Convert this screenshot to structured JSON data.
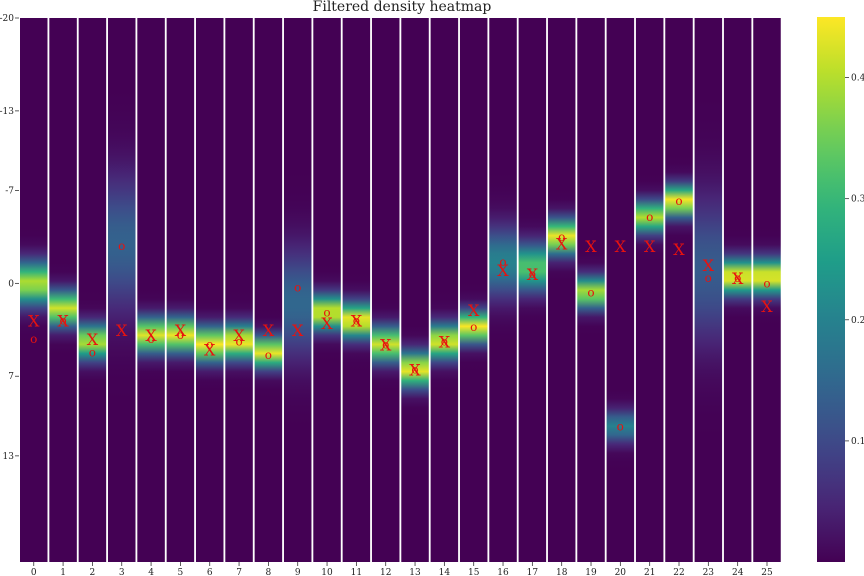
{
  "chart_data": {
    "type": "heatmap",
    "title": "Filtered density heatmap",
    "xlabel": "",
    "ylabel": "",
    "x_ticks": [
      "0",
      "1",
      "2",
      "3",
      "4",
      "5",
      "6",
      "7",
      "8",
      "9",
      "10",
      "11",
      "12",
      "13",
      "14",
      "15",
      "16",
      "17",
      "18",
      "19",
      "20",
      "21",
      "22",
      "23",
      "24",
      "25"
    ],
    "y_ticks": [
      "-20",
      "-13",
      "-7",
      "0",
      "7",
      "13"
    ],
    "ylim": [
      -20,
      21
    ],
    "colormap": "viridis",
    "colorbar": {
      "ticks": [
        "0.1",
        "0.2",
        "0.3",
        "0.4"
      ],
      "range": [
        0,
        0.45
      ]
    },
    "columns": [
      {
        "x": 0,
        "center": 0.0,
        "width": 1.1,
        "peak": 0.4,
        "X": 2.8,
        "o": 4.2
      },
      {
        "x": 1,
        "center": 1.9,
        "width": 0.9,
        "peak": 0.42,
        "X": 2.8,
        "o": 2.8
      },
      {
        "x": 2,
        "center": 4.4,
        "width": 0.9,
        "peak": 0.4,
        "X": 4.2,
        "o": 5.2
      },
      {
        "x": 3,
        "center": -3.0,
        "width": 3.5,
        "peak": 0.14,
        "X": 3.5,
        "o": -2.8
      },
      {
        "x": 4,
        "center": 3.9,
        "width": 0.9,
        "peak": 0.43,
        "X": 3.9,
        "o": 4.2
      },
      {
        "x": 5,
        "center": 3.9,
        "width": 0.9,
        "peak": 0.44,
        "X": 3.5,
        "o": 3.9
      },
      {
        "x": 6,
        "center": 4.6,
        "width": 0.9,
        "peak": 0.45,
        "X": 5.0,
        "o": 4.6
      },
      {
        "x": 7,
        "center": 4.4,
        "width": 0.9,
        "peak": 0.45,
        "X": 3.9,
        "o": 4.4
      },
      {
        "x": 8,
        "center": 5.2,
        "width": 0.8,
        "peak": 0.44,
        "X": 3.5,
        "o": 5.4
      },
      {
        "x": 9,
        "center": 1.5,
        "width": 2.8,
        "peak": 0.15,
        "X": 3.5,
        "o": 0.3
      },
      {
        "x": 10,
        "center": 2.2,
        "width": 0.9,
        "peak": 0.43,
        "X": 3.0,
        "o": 2.2
      },
      {
        "x": 11,
        "center": 2.8,
        "width": 0.9,
        "peak": 0.45,
        "X": 2.8,
        "o": 2.8
      },
      {
        "x": 12,
        "center": 4.6,
        "width": 0.9,
        "peak": 0.42,
        "X": 4.6,
        "o": 4.6
      },
      {
        "x": 13,
        "center": 6.5,
        "width": 0.9,
        "peak": 0.44,
        "X": 6.5,
        "o": 6.5
      },
      {
        "x": 14,
        "center": 4.4,
        "width": 0.9,
        "peak": 0.43,
        "X": 4.4,
        "o": 4.4
      },
      {
        "x": 15,
        "center": 3.3,
        "width": 0.8,
        "peak": 0.45,
        "X": 2.0,
        "o": 3.3
      },
      {
        "x": 16,
        "center": -1.6,
        "width": 1.8,
        "peak": 0.2,
        "X": -1.0,
        "o": -1.6
      },
      {
        "x": 17,
        "center": -1.2,
        "width": 1.2,
        "peak": 0.33,
        "X": -0.7,
        "o": -0.7
      },
      {
        "x": 18,
        "center": -3.5,
        "width": 0.9,
        "peak": 0.44,
        "X": -3.0,
        "o": -3.5
      },
      {
        "x": 19,
        "center": 0.7,
        "width": 0.8,
        "peak": 0.4,
        "X": -2.8,
        "o": 0.7
      },
      {
        "x": 20,
        "center": 10.8,
        "width": 0.8,
        "peak": 0.2,
        "X": -2.8,
        "o": 10.8
      },
      {
        "x": 21,
        "center": -5.0,
        "width": 0.8,
        "peak": 0.4,
        "X": -2.8,
        "o": -5.0
      },
      {
        "x": 22,
        "center": -6.2,
        "width": 0.8,
        "peak": 0.45,
        "X": -2.6,
        "o": -6.2
      },
      {
        "x": 23,
        "center": -1.0,
        "width": 3.8,
        "peak": 0.13,
        "X": -1.4,
        "o": -0.4
      },
      {
        "x": 24,
        "center": -0.5,
        "width": 0.9,
        "peak": 0.45,
        "X": -0.4,
        "o": -0.4
      },
      {
        "x": 25,
        "center": -0.5,
        "width": 0.9,
        "peak": 0.45,
        "X": 1.7,
        "o": 0.0
      }
    ]
  }
}
